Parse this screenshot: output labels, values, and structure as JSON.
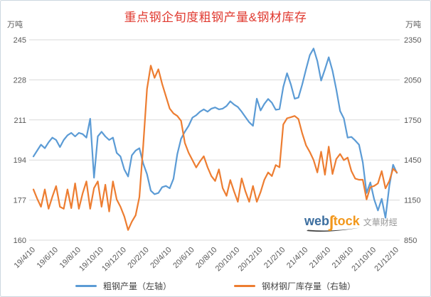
{
  "title": "重点钢企旬度粗钢产量&钢材库存",
  "left_axis_unit": "万吨",
  "right_axis_unit": "万吨",
  "legend": {
    "series1": "粗钢产量（左轴）",
    "series2": "钢材钢厂库存量（右轴）"
  },
  "watermark": {
    "web": "web",
    "s_glyph": "ʃ",
    "tock": "tock",
    "cn": "文華財經"
  },
  "colors": {
    "production": "#5B9BD5",
    "inventory": "#ED7D31",
    "title": "#E03A30",
    "axis_text": "#595959",
    "gridline": "#D9D9D9",
    "legend_text": "#444444",
    "watermark_web": "#3C6E9F",
    "watermark_tock": "#F2971B",
    "watermark_cn": "#999999",
    "watermark_swoosh": "#3F3F3F"
  },
  "chart_data": {
    "type": "line",
    "title": "重点钢企旬度粗钢产量&钢材库存",
    "grid": true,
    "legend_position": "bottom",
    "x_labels": [
      "19/4/10",
      "19/6/10",
      "19/8/10",
      "19/10/10",
      "19/12/10",
      "20/2/10",
      "20/4/10",
      "20/6/10",
      "20/8/10",
      "20/10/10",
      "20/12/10",
      "21/2/10",
      "21/4/10",
      "21/6/10",
      "21/8/10",
      "21/10/10",
      "21/12/10"
    ],
    "points_per_label": 6,
    "left_axis": {
      "unit": "万吨",
      "min": 160,
      "max": 245,
      "ticks": [
        245,
        228,
        211,
        194,
        177,
        160
      ]
    },
    "right_axis": {
      "unit": "万吨",
      "min": 850,
      "max": 2350,
      "ticks": [
        2350,
        2050,
        1750,
        1450,
        1150,
        850
      ]
    },
    "series": [
      {
        "name": "粗钢产量（左轴）",
        "axis": "left",
        "color": "#5B9BD5",
        "values": [
          195.5,
          198,
          200.5,
          199,
          201.5,
          203.5,
          202.5,
          199.5,
          202.5,
          204.5,
          205.5,
          204,
          205.5,
          205,
          203.5,
          211.5,
          186.5,
          204,
          206,
          204,
          202.5,
          203.5,
          197,
          195.5,
          190,
          187,
          196,
          198,
          199,
          192.5,
          188,
          181,
          179.5,
          180,
          182.5,
          183,
          182,
          186,
          196.5,
          203,
          206,
          208.5,
          212,
          213,
          214.5,
          215.5,
          214.5,
          215.8,
          216.3,
          215.5,
          215.8,
          216.9,
          218.9,
          217.5,
          216.5,
          214.5,
          212.2,
          210,
          208.5,
          220,
          215,
          217.8,
          219.9,
          218.3,
          215.3,
          215.6,
          225,
          230.8,
          226,
          220,
          220.5,
          226,
          232.5,
          238.5,
          241.3,
          236,
          227.7,
          232.5,
          237.6,
          231.9,
          224,
          214.8,
          211.6,
          203.5,
          203.8,
          202.3,
          200.5,
          193,
          180,
          184.5,
          177.3,
          172.6,
          177.5,
          169.5,
          183,
          192,
          188.5
        ]
      },
      {
        "name": "钢材钢厂库存量（右轴）",
        "axis": "right",
        "color": "#ED7D31",
        "values": [
          1230,
          1160,
          1100,
          1230,
          1085,
          1175,
          1255,
          1100,
          1085,
          1230,
          1090,
          1275,
          1085,
          1200,
          1290,
          1085,
          1240,
          1290,
          1100,
          1265,
          1065,
          1290,
          1155,
          1100,
          1027,
          926,
          989,
          1036,
          1173,
          1560,
          1982,
          2157,
          2065,
          2129,
          2019,
          1927,
          1835,
          1799,
          1780,
          1743,
          1578,
          1504,
          1449,
          1394,
          1440,
          1478,
          1395,
          1330,
          1293,
          1380,
          1240,
          1182,
          1300,
          1215,
          1137,
          1312,
          1215,
          1137,
          1256,
          1137,
          1210,
          1302,
          1357,
          1330,
          1412,
          1396,
          1716,
          1762,
          1771,
          1780,
          1757,
          1650,
          1560,
          1510,
          1450,
          1357,
          1512,
          1340,
          1550,
          1345,
          1457,
          1495,
          1449,
          1468,
          1367,
          1311,
          1302,
          1302,
          1155,
          1247,
          1256,
          1275,
          1367,
          1238,
          1293,
          1385,
          1357
        ]
      }
    ]
  }
}
